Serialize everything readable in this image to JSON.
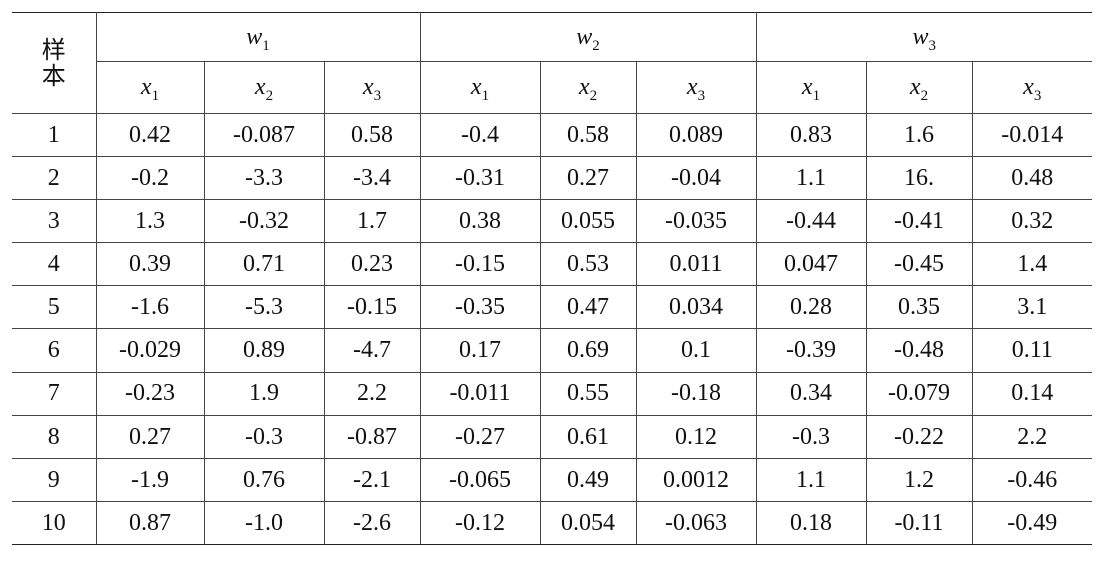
{
  "corner_label_top": "样",
  "corner_label_bottom": "本",
  "classes": [
    {
      "symbol": "w",
      "index": "1"
    },
    {
      "symbol": "w",
      "index": "2"
    },
    {
      "symbol": "w",
      "index": "3"
    }
  ],
  "features": [
    {
      "symbol": "x",
      "index": "1"
    },
    {
      "symbol": "x",
      "index": "2"
    },
    {
      "symbol": "x",
      "index": "3"
    }
  ],
  "rows": [
    {
      "sample": "1",
      "values": [
        "0.42",
        "-0.087",
        "0.58",
        "-0.4",
        "0.58",
        "0.089",
        "0.83",
        "1.6",
        "-0.014"
      ]
    },
    {
      "sample": "2",
      "values": [
        "-0.2",
        "-3.3",
        "-3.4",
        "-0.31",
        "0.27",
        "-0.04",
        "1.1",
        "16.",
        "0.48"
      ]
    },
    {
      "sample": "3",
      "values": [
        "1.3",
        "-0.32",
        "1.7",
        "0.38",
        "0.055",
        "-0.035",
        "-0.44",
        "-0.41",
        "0.32"
      ]
    },
    {
      "sample": "4",
      "values": [
        "0.39",
        "0.71",
        "0.23",
        "-0.15",
        "0.53",
        "0.011",
        "0.047",
        "-0.45",
        "1.4"
      ]
    },
    {
      "sample": "5",
      "values": [
        "-1.6",
        "-5.3",
        "-0.15",
        "-0.35",
        "0.47",
        "0.034",
        "0.28",
        "0.35",
        "3.1"
      ]
    },
    {
      "sample": "6",
      "values": [
        "-0.029",
        "0.89",
        "-4.7",
        "0.17",
        "0.69",
        "0.1",
        "-0.39",
        "-0.48",
        "0.11"
      ]
    },
    {
      "sample": "7",
      "values": [
        "-0.23",
        "1.9",
        "2.2",
        "-0.011",
        "0.55",
        "-0.18",
        "0.34",
        "-0.079",
        "0.14"
      ]
    },
    {
      "sample": "8",
      "values": [
        "0.27",
        "-0.3",
        "-0.87",
        "-0.27",
        "0.61",
        "0.12",
        "-0.3",
        "-0.22",
        "2.2"
      ]
    },
    {
      "sample": "9",
      "values": [
        "-1.9",
        "0.76",
        "-2.1",
        "-0.065",
        "0.49",
        "0.0012",
        "1.1",
        "1.2",
        "-0.46"
      ]
    },
    {
      "sample": "10",
      "values": [
        "0.87",
        "-1.0",
        "-2.6",
        "-0.12",
        "0.054",
        "-0.063",
        "0.18",
        "-0.11",
        "-0.49"
      ]
    }
  ]
}
